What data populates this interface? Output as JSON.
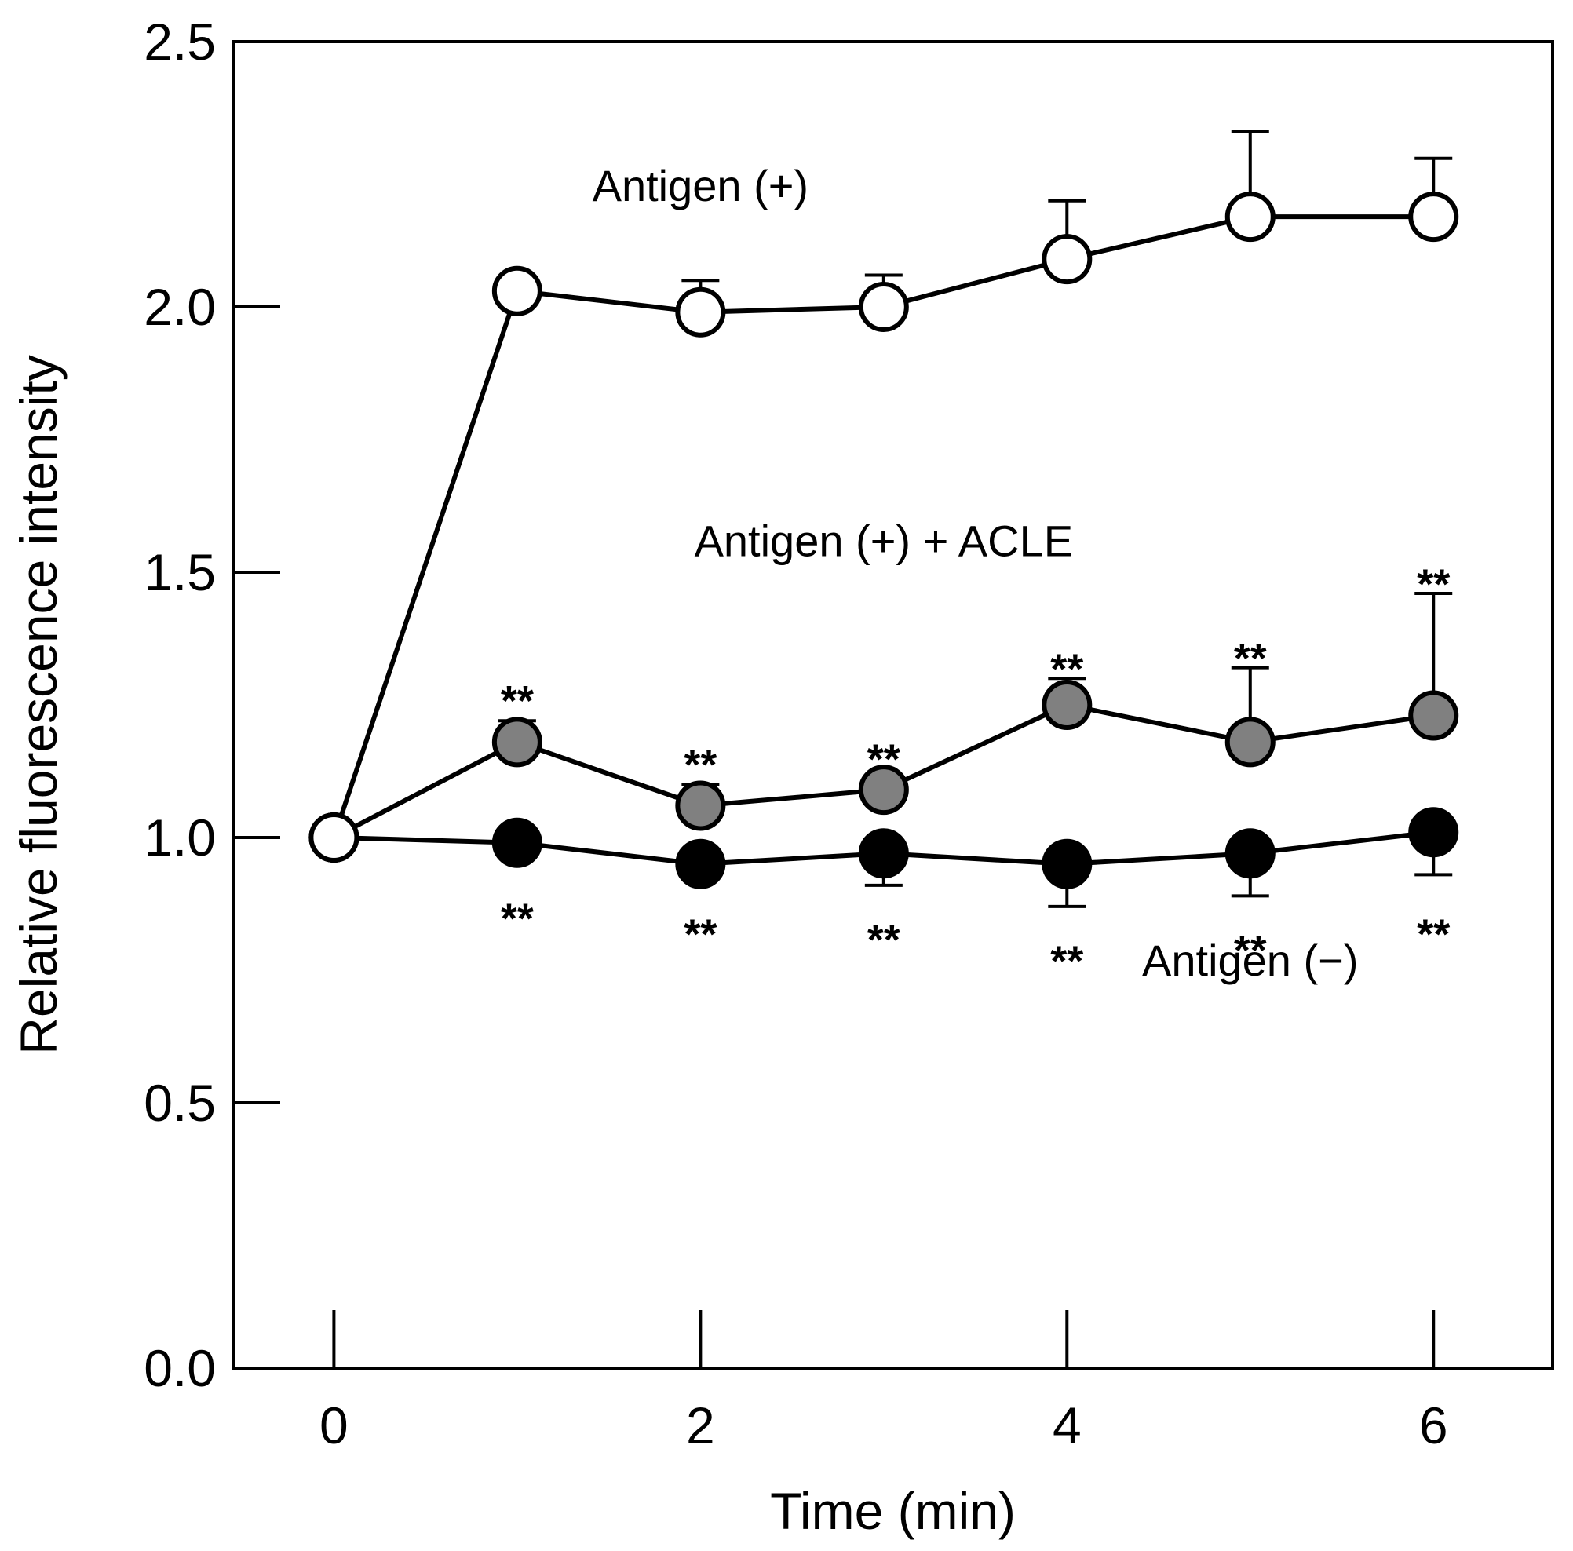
{
  "chart_data": {
    "type": "line",
    "title": "",
    "xlabel": "Time (min)",
    "ylabel": "Relative fluorescence intensity",
    "xlim": [
      -0.55,
      6.65
    ],
    "ylim": [
      0,
      2.5
    ],
    "x_ticks": [
      "0",
      "2",
      "4",
      "6"
    ],
    "y_ticks": [
      "0.0",
      "0.5",
      "1.0",
      "1.5",
      "2.0",
      "2.5"
    ],
    "x": [
      0,
      1,
      2,
      3,
      4,
      5,
      6
    ],
    "series": [
      {
        "name": "Antigen (+)",
        "marker": "open-circle",
        "fill": "#ffffff",
        "values": [
          1.0,
          2.03,
          1.99,
          2.0,
          2.09,
          2.17,
          2.17
        ],
        "error_up": [
          0,
          0,
          0.06,
          0.06,
          0.11,
          0.16,
          0.11
        ]
      },
      {
        "name": "Antigen (+) + ACLE",
        "marker": "gray-circle",
        "fill": "#808080",
        "values": [
          1.0,
          1.18,
          1.06,
          1.09,
          1.25,
          1.18,
          1.23
        ],
        "error_up": [
          0,
          0.04,
          0.04,
          0,
          0.05,
          0.14,
          0.23
        ]
      },
      {
        "name": "Antigen (−)",
        "marker": "filled-circle",
        "fill": "#000000",
        "values": [
          1.0,
          0.99,
          0.95,
          0.97,
          0.95,
          0.97,
          1.01
        ],
        "error_down": [
          0,
          0,
          0,
          0.06,
          0.08,
          0.08,
          0.08
        ]
      }
    ],
    "annotations": [
      {
        "text": "Antigen (+)",
        "x": 2.0,
        "y": 2.2
      },
      {
        "text": "Antigen (+) + ACLE",
        "x": 3.0,
        "y": 1.53
      },
      {
        "text": "Antigen (−)",
        "x": 5.0,
        "y": 0.74
      }
    ],
    "significance_marks": [
      {
        "text": "**",
        "x": 1,
        "y": 1.26
      },
      {
        "text": "**",
        "x": 2,
        "y": 1.14
      },
      {
        "text": "**",
        "x": 3,
        "y": 1.15
      },
      {
        "text": "**",
        "x": 4,
        "y": 1.32
      },
      {
        "text": "**",
        "x": 5,
        "y": 1.34
      },
      {
        "text": "**",
        "x": 6,
        "y": 1.48
      },
      {
        "text": "**",
        "x": 1,
        "y": 0.85
      },
      {
        "text": "**",
        "x": 2,
        "y": 0.82
      },
      {
        "text": "**",
        "x": 3,
        "y": 0.81
      },
      {
        "text": "**",
        "x": 4,
        "y": 0.77
      },
      {
        "text": "**",
        "x": 5,
        "y": 0.79
      },
      {
        "text": "**",
        "x": 6,
        "y": 0.82
      }
    ]
  }
}
